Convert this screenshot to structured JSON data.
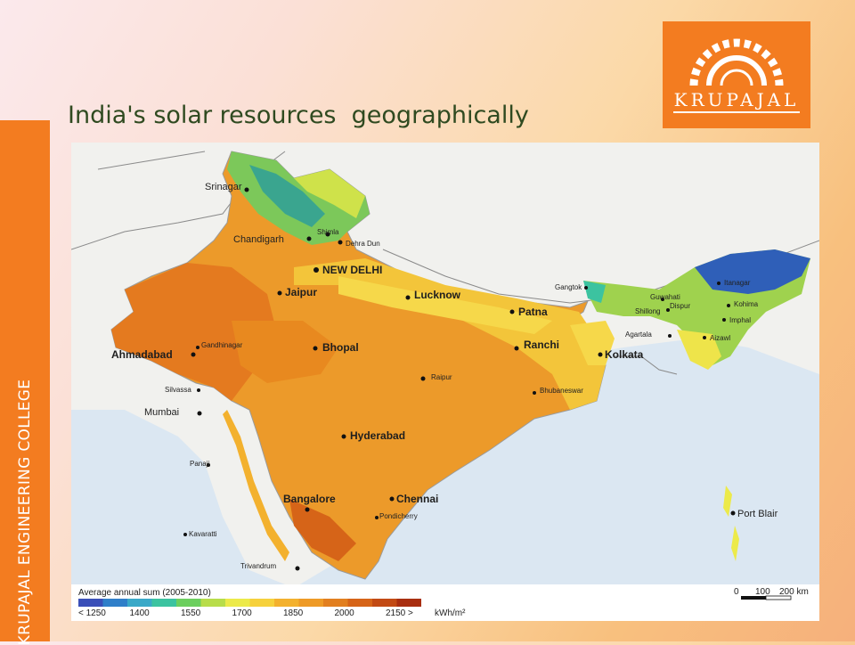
{
  "sidebar": {
    "label": "KRUPAJAL ENGINEERING COLLEGE"
  },
  "logo": {
    "text": "KRUPAJAL",
    "color": "#f37c20"
  },
  "slide": {
    "title": "India's solar resources  geographically"
  },
  "map": {
    "cities": [
      {
        "name": "Srinagar"
      },
      {
        "name": "Shimla"
      },
      {
        "name": "Chandigarh"
      },
      {
        "name": "Dehra Dun"
      },
      {
        "name": "NEW DELHI"
      },
      {
        "name": "Jaipur"
      },
      {
        "name": "Lucknow"
      },
      {
        "name": "Patna"
      },
      {
        "name": "Gangtok"
      },
      {
        "name": "Guwahati"
      },
      {
        "name": "Dispur"
      },
      {
        "name": "Itanagar"
      },
      {
        "name": "Kohima"
      },
      {
        "name": "Shillong"
      },
      {
        "name": "Imphal"
      },
      {
        "name": "Agartala"
      },
      {
        "name": "Aizawl"
      },
      {
        "name": "Gandhinagar"
      },
      {
        "name": "Ahmadabad"
      },
      {
        "name": "Bhopal"
      },
      {
        "name": "Ranchi"
      },
      {
        "name": "Kolkata"
      },
      {
        "name": "Raipur"
      },
      {
        "name": "Silvassa"
      },
      {
        "name": "Bhubaneswar"
      },
      {
        "name": "Mumbai"
      },
      {
        "name": "Hyderabad"
      },
      {
        "name": "Panaji"
      },
      {
        "name": "Bangalore"
      },
      {
        "name": "Chennai"
      },
      {
        "name": "Pondicherry"
      },
      {
        "name": "Kavaratti"
      },
      {
        "name": "Port Blair"
      },
      {
        "name": "Trivandrum"
      }
    ],
    "legend": {
      "title": "Average annual sum (2005-2010)",
      "tick_labels": [
        "< 1250",
        "1400",
        "1550",
        "1700",
        "1850",
        "2000",
        "2150 >"
      ],
      "unit": "kWh/m²",
      "colors": [
        "#3a4fb8",
        "#2f7fc9",
        "#3aa9c8",
        "#3cc3a0",
        "#6ccf5e",
        "#b8dd4a",
        "#ecea4a",
        "#f6d13c",
        "#f3b12e",
        "#ee9a26",
        "#e27f1f",
        "#d66418",
        "#c24a14",
        "#a82e10"
      ]
    },
    "scale_bar": {
      "ticks": [
        "0",
        "100",
        "200 km"
      ]
    }
  }
}
